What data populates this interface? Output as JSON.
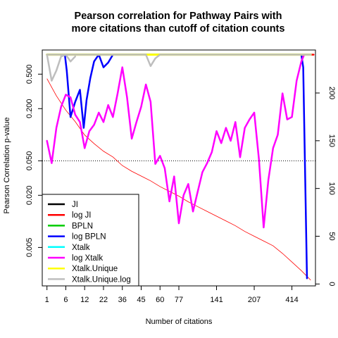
{
  "chart_data": {
    "type": "line",
    "title_lines": [
      "Pearson correlation for Pathway Pairs with",
      "more citations than cutoff of citation counts"
    ],
    "xlabel": "Number of citations",
    "ylabel": "Pearson Correlation p-value",
    "x_tick_labels": [
      {
        "pos": 0,
        "label": "1"
      },
      {
        "pos": 2,
        "label": "6"
      },
      {
        "pos": 4,
        "label": "12"
      },
      {
        "pos": 6,
        "label": "22"
      },
      {
        "pos": 8,
        "label": "36"
      },
      {
        "pos": 10,
        "label": "45"
      },
      {
        "pos": 12,
        "label": "60"
      },
      {
        "pos": 14,
        "label": "77"
      },
      {
        "pos": 18,
        "label": "141"
      },
      {
        "pos": 22,
        "label": "207"
      },
      {
        "pos": 26,
        "label": "414"
      }
    ],
    "xlim": [
      -0.5,
      28.5
    ],
    "left_axis": {
      "scale": "log10",
      "range": [
        0.0018,
        0.95
      ],
      "ticks": [
        0.005,
        0.02,
        0.05,
        0.2,
        0.5
      ],
      "tick_labels": [
        "0.005",
        "0.020",
        "0.050",
        "0.200",
        "0.500"
      ]
    },
    "right_axis": {
      "range": [
        -2,
        245
      ],
      "ticks": [
        0,
        50,
        100,
        150,
        200
      ],
      "tick_labels": [
        "0",
        "50",
        "100",
        "150",
        "200"
      ]
    },
    "reference_line": {
      "y": 0.05,
      "style": "dotted"
    },
    "count_line": {
      "color": "#ff0000",
      "x": [
        0,
        1,
        2,
        3,
        4,
        5,
        6,
        7,
        8,
        9,
        10,
        11,
        12,
        13,
        14,
        15,
        16,
        17,
        18,
        19,
        20,
        21,
        22,
        23,
        24,
        25,
        26,
        27,
        28
      ],
      "y": [
        215,
        197,
        182,
        170,
        156,
        147,
        139,
        133,
        124,
        118,
        113,
        108,
        102,
        97,
        92,
        86,
        81,
        76,
        71,
        66,
        61,
        55,
        50,
        45,
        40,
        32,
        23,
        14,
        4
      ]
    },
    "series": [
      {
        "name": "JI",
        "color": "#000000",
        "width": 2.5,
        "x": [
          0,
          28
        ],
        "y": [
          0.84,
          0.84
        ]
      },
      {
        "name": "log JI",
        "color": "#ff0000",
        "width": 2.5,
        "x": [
          0,
          28.3
        ],
        "y": [
          0.84,
          0.84
        ]
      },
      {
        "name": "BPLN",
        "color": "#00cc00",
        "width": 2.5,
        "x": [
          0,
          28
        ],
        "y": [
          0.84,
          0.84
        ]
      },
      {
        "name": "log BPLN",
        "color": "#0000ff",
        "width": 2.5,
        "x": [
          0,
          1,
          1.5,
          1.9,
          2.1,
          2.5,
          3,
          3.5,
          3.9,
          4.2,
          4.6,
          5,
          5.5,
          6,
          6.5,
          7,
          8,
          27,
          27.2,
          27.6
        ],
        "y": [
          0.84,
          0.84,
          0.84,
          0.84,
          0.55,
          0.16,
          0.24,
          0.33,
          0.12,
          0.25,
          0.45,
          0.7,
          0.84,
          0.6,
          0.68,
          0.84,
          0.84,
          0.84,
          0.6,
          0.0022
        ]
      },
      {
        "name": "Xtalk",
        "color": "#00ffff",
        "width": 2.5,
        "x": [
          0,
          28
        ],
        "y": [
          0.84,
          0.84
        ]
      },
      {
        "name": "log Xtalk",
        "color": "#ff00ff",
        "width": 2.5,
        "x": [
          0,
          0.5,
          1,
          1.5,
          2,
          2.5,
          3,
          3.5,
          4,
          4.5,
          5,
          5.5,
          6,
          6.5,
          7,
          7.5,
          8,
          8.5,
          9,
          9.5,
          10,
          10.5,
          11,
          11.5,
          12,
          12.5,
          13,
          13.5,
          14,
          14.5,
          15,
          15.5,
          16,
          16.5,
          17,
          17.5,
          18,
          18.5,
          19,
          19.5,
          20,
          20.5,
          21,
          21.5,
          22,
          22.5,
          23,
          23.5,
          24,
          24.5,
          25,
          25.5,
          26,
          26.5,
          27,
          27.3
        ],
        "y": [
          0.085,
          0.047,
          0.12,
          0.21,
          0.29,
          0.27,
          0.17,
          0.14,
          0.07,
          0.11,
          0.13,
          0.18,
          0.14,
          0.22,
          0.16,
          0.3,
          0.6,
          0.27,
          0.09,
          0.14,
          0.21,
          0.38,
          0.24,
          0.046,
          0.057,
          0.041,
          0.017,
          0.033,
          0.0095,
          0.02,
          0.027,
          0.013,
          0.022,
          0.037,
          0.047,
          0.063,
          0.11,
          0.08,
          0.12,
          0.085,
          0.14,
          0.055,
          0.12,
          0.15,
          0.18,
          0.052,
          0.0085,
          0.03,
          0.07,
          0.1,
          0.3,
          0.15,
          0.16,
          0.42,
          0.7,
          0.84
        ]
      },
      {
        "name": "Xtalk.Unique",
        "color": "#ffff00",
        "width": 3,
        "x": [
          0,
          28
        ],
        "y": [
          0.84,
          0.84
        ]
      },
      {
        "name": "Xtalk.Unique.log",
        "color": "#bebebe",
        "width": 2.5,
        "x": [
          0,
          1,
          1.5,
          2,
          2.5,
          3,
          3.5,
          4,
          4.5,
          5,
          5.5,
          6,
          6.5,
          7,
          7.5,
          8,
          8.5,
          9,
          9.5,
          10,
          10.5,
          11,
          11.5,
          12,
          12.5,
          13,
          13.5,
          14,
          14.5,
          15,
          15.5,
          16,
          16.5,
          17,
          17.5,
          18,
          18.5,
          19,
          19.5,
          20,
          20.5,
          21,
          21.5,
          22,
          22.5,
          23,
          23.5,
          24,
          24.5,
          25,
          25.5,
          26,
          26.5,
          27,
          27.5,
          28
        ],
        "y": [
          0.84,
          0.84,
          0.84,
          0.84,
          0.84,
          0.84,
          0.84,
          0.84,
          0.84,
          0.84,
          0.84,
          0.84,
          0.84,
          0.84,
          0.84,
          0.84,
          0.84,
          0.84,
          0.84,
          0.84,
          0.84,
          0.62,
          0.76,
          0.84,
          0.84,
          0.84,
          0.84,
          0.84,
          0.84,
          0.84,
          0.84,
          0.84,
          0.84,
          0.84,
          0.84,
          0.84,
          0.84,
          0.84,
          0.84,
          0.84,
          0.84,
          0.84,
          0.84,
          0.84,
          0.84,
          0.84,
          0.84,
          0.84,
          0.84,
          0.84,
          0.84,
          0.84,
          0.84,
          0.84,
          0.84,
          0.84
        ]
      },
      {
        "name": "Xtalk.Unique.log",
        "color": "#bebebe",
        "width": 2.5,
        "x": [
          0,
          0.5,
          1,
          1.5,
          2,
          2.5,
          3
        ],
        "y": [
          0.84,
          0.42,
          0.55,
          0.8,
          0.84,
          0.7,
          0.8
        ]
      }
    ],
    "legend_placement": "bottom-left",
    "legend": [
      {
        "name": "JI",
        "color": "#000000"
      },
      {
        "name": "log JI",
        "color": "#ff0000"
      },
      {
        "name": "BPLN",
        "color": "#00cc00"
      },
      {
        "name": "log BPLN",
        "color": "#0000ff"
      },
      {
        "name": "Xtalk",
        "color": "#00ffff"
      },
      {
        "name": "log Xtalk",
        "color": "#ff00ff"
      },
      {
        "name": "Xtalk.Unique",
        "color": "#ffff00"
      },
      {
        "name": "Xtalk.Unique.log",
        "color": "#bebebe"
      }
    ]
  }
}
